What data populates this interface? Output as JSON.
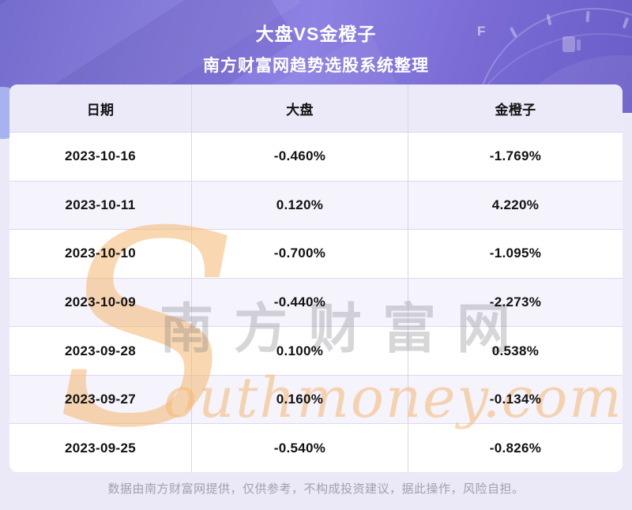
{
  "header": {
    "title": "大盘VS金橙子",
    "subtitle": "南方财富网趋势选股系统整理"
  },
  "table": {
    "columns": [
      "日期",
      "大盘",
      "金橙子"
    ],
    "rows": [
      [
        "2023-10-16",
        "-0.460%",
        "-1.769%"
      ],
      [
        "2023-10-11",
        "0.120%",
        "4.220%"
      ],
      [
        "2023-10-10",
        "-0.700%",
        "-1.095%"
      ],
      [
        "2023-10-09",
        "-0.440%",
        "-2.273%"
      ],
      [
        "2023-09-28",
        "0.100%",
        "0.538%"
      ],
      [
        "2023-09-27",
        "0.160%",
        "-0.134%"
      ],
      [
        "2023-09-25",
        "-0.540%",
        "-0.826%"
      ]
    ]
  },
  "watermark": {
    "s_glyph": "S",
    "script_text": "outhmoney.com",
    "cn_text": "南方财富网",
    "gauge_label": "F"
  },
  "footer": {
    "disclaimer": "数据由南方财富网提供，仅供参考，不构成投资建议，据此操作，风险自担。"
  },
  "colors": {
    "hero_gradient_start": "#6c64cb",
    "hero_gradient_mid": "#8d81e3",
    "hero_gradient_end": "#6a5dc8",
    "page_background": "#ebe8f7",
    "table_header_bg": "#ece9f8",
    "row_alt_bg": "#f5f3fc",
    "divider": "#d8d4e9",
    "watermark_orange": "#f4b770",
    "watermark_gray": "#6e6e76",
    "footer_text": "#a29fb0"
  },
  "chart_data": {
    "type": "table",
    "title": "大盘VS金橙子",
    "subtitle": "南方财富网趋势选股系统整理",
    "columns": [
      "日期",
      "大盘",
      "金橙子"
    ],
    "categories": [
      "2023-10-16",
      "2023-10-11",
      "2023-10-10",
      "2023-10-09",
      "2023-09-28",
      "2023-09-27",
      "2023-09-25"
    ],
    "series": [
      {
        "name": "大盘",
        "unit": "%",
        "values": [
          -0.46,
          0.12,
          -0.7,
          -0.44,
          0.1,
          0.16,
          -0.54
        ]
      },
      {
        "name": "金橙子",
        "unit": "%",
        "values": [
          -1.769,
          4.22,
          -1.095,
          -2.273,
          0.538,
          -0.134,
          -0.826
        ]
      }
    ]
  }
}
